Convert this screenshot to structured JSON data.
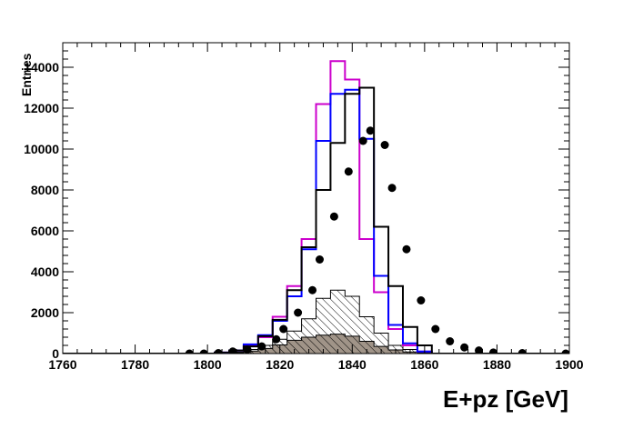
{
  "chart_data": {
    "type": "histogram",
    "xlabel": "E+pz [GeV]",
    "ylabel": "Entries",
    "xlim": [
      1760,
      1900
    ],
    "ylim": [
      0,
      15200
    ],
    "x_ticks": [
      "1760",
      "1780",
      "1800",
      "1820",
      "1840",
      "1860",
      "1880",
      "1900"
    ],
    "y_ticks": [
      "0",
      "2000",
      "4000",
      "6000",
      "8000",
      "10000",
      "12000",
      "14000"
    ],
    "bin_edges": [
      1760,
      1794,
      1798,
      1802,
      1806,
      1810,
      1814,
      1818,
      1822,
      1826,
      1830,
      1834,
      1838,
      1842,
      1846,
      1850,
      1854,
      1858,
      1862,
      1900
    ],
    "colors": {
      "data_points": "#000000",
      "magenta_histogram": "#cc00cc",
      "blue_histogram": "#0000ff",
      "black_histogram": "#000000",
      "hatched_component": "#000000",
      "filled_component": "#a09488"
    },
    "series": [
      {
        "style": "points",
        "x": [
          1795,
          1799,
          1803,
          1807,
          1811,
          1815,
          1819,
          1821,
          1825,
          1829,
          1831,
          1835,
          1839,
          1843,
          1845,
          1849,
          1851,
          1855,
          1859,
          1863,
          1867,
          1871,
          1875,
          1879,
          1887,
          1899
        ],
        "values": [
          0,
          0,
          20,
          100,
          200,
          350,
          700,
          1200,
          2000,
          3100,
          4600,
          6700,
          8900,
          10400,
          10900,
          10200,
          8100,
          5100,
          2600,
          1200,
          600,
          300,
          150,
          50,
          20,
          0
        ]
      },
      {
        "style": "step",
        "color": "magenta",
        "values": [
          0,
          0,
          0,
          50,
          150,
          400,
          800,
          1800,
          3300,
          5600,
          12200,
          14300,
          13400,
          5600,
          3000,
          1200,
          400,
          100,
          0
        ]
      },
      {
        "style": "step",
        "color": "blue",
        "values": [
          0,
          0,
          0,
          50,
          150,
          450,
          900,
          1600,
          2800,
          5100,
          10400,
          12700,
          12900,
          10500,
          3800,
          1400,
          500,
          100,
          0
        ]
      },
      {
        "style": "step",
        "color": "black",
        "values": [
          0,
          0,
          0,
          50,
          150,
          350,
          850,
          1650,
          3100,
          5200,
          8000,
          10300,
          12700,
          13000,
          6200,
          3300,
          1300,
          400,
          0
        ]
      },
      {
        "style": "hatched-step",
        "values": [
          0,
          0,
          0,
          20,
          80,
          200,
          400,
          700,
          1100,
          1700,
          2700,
          3100,
          2800,
          1800,
          1000,
          400,
          200,
          50,
          0
        ]
      },
      {
        "style": "filled-step",
        "values": [
          0,
          0,
          0,
          10,
          40,
          120,
          250,
          420,
          650,
          800,
          900,
          950,
          850,
          600,
          350,
          180,
          80,
          20,
          0
        ]
      }
    ]
  }
}
